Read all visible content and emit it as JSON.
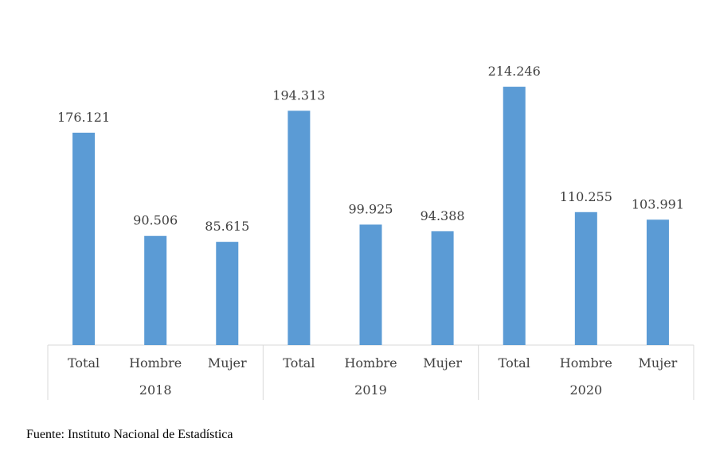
{
  "chart_data": {
    "type": "bar",
    "groups": [
      {
        "label": "2018",
        "categories": [
          "Total",
          "Hombre",
          "Mujer"
        ],
        "values": [
          176121,
          90506,
          85615
        ],
        "value_labels": [
          "176.121",
          "90.506",
          "85.615"
        ]
      },
      {
        "label": "2019",
        "categories": [
          "Total",
          "Hombre",
          "Mujer"
        ],
        "values": [
          194313,
          99925,
          94388
        ],
        "value_labels": [
          "194.313",
          "99.925",
          "94.388"
        ]
      },
      {
        "label": "2020",
        "categories": [
          "Total",
          "Hombre",
          "Mujer"
        ],
        "values": [
          214246,
          110255,
          103991
        ],
        "value_labels": [
          "214.246",
          "110.255",
          "103.991"
        ]
      }
    ],
    "ylim": [
      0,
      240000
    ],
    "grid": false,
    "legend": "none",
    "bar_color": "#5b9bd5",
    "axis_color": "#d9d9d9"
  },
  "source_text": "Fuente: Instituto Nacional de Estadística"
}
